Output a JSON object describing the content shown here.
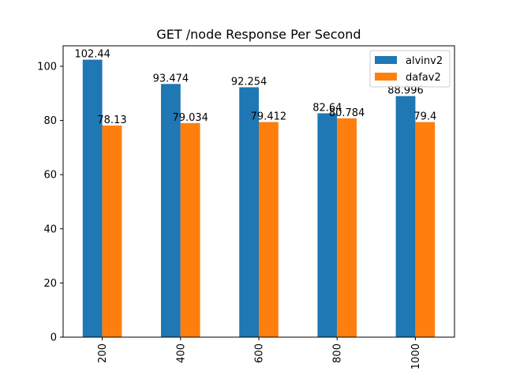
{
  "chart_data": {
    "type": "bar",
    "title": "GET /node Response Per Second",
    "xlabel": "",
    "ylabel": "",
    "categories": [
      "200",
      "400",
      "600",
      "800",
      "1000"
    ],
    "series": [
      {
        "name": "alvinv2",
        "color": "#1f77b4",
        "values": [
          102.44,
          93.474,
          92.254,
          82.64,
          88.996
        ]
      },
      {
        "name": "dafav2",
        "color": "#ff7f0e",
        "values": [
          78.13,
          79.034,
          79.412,
          80.784,
          79.4
        ]
      }
    ],
    "ylim": [
      0,
      107.562
    ],
    "yticks": [
      0,
      20,
      40,
      60,
      80,
      100
    ],
    "legend_position": "top-right",
    "grid": false
  }
}
